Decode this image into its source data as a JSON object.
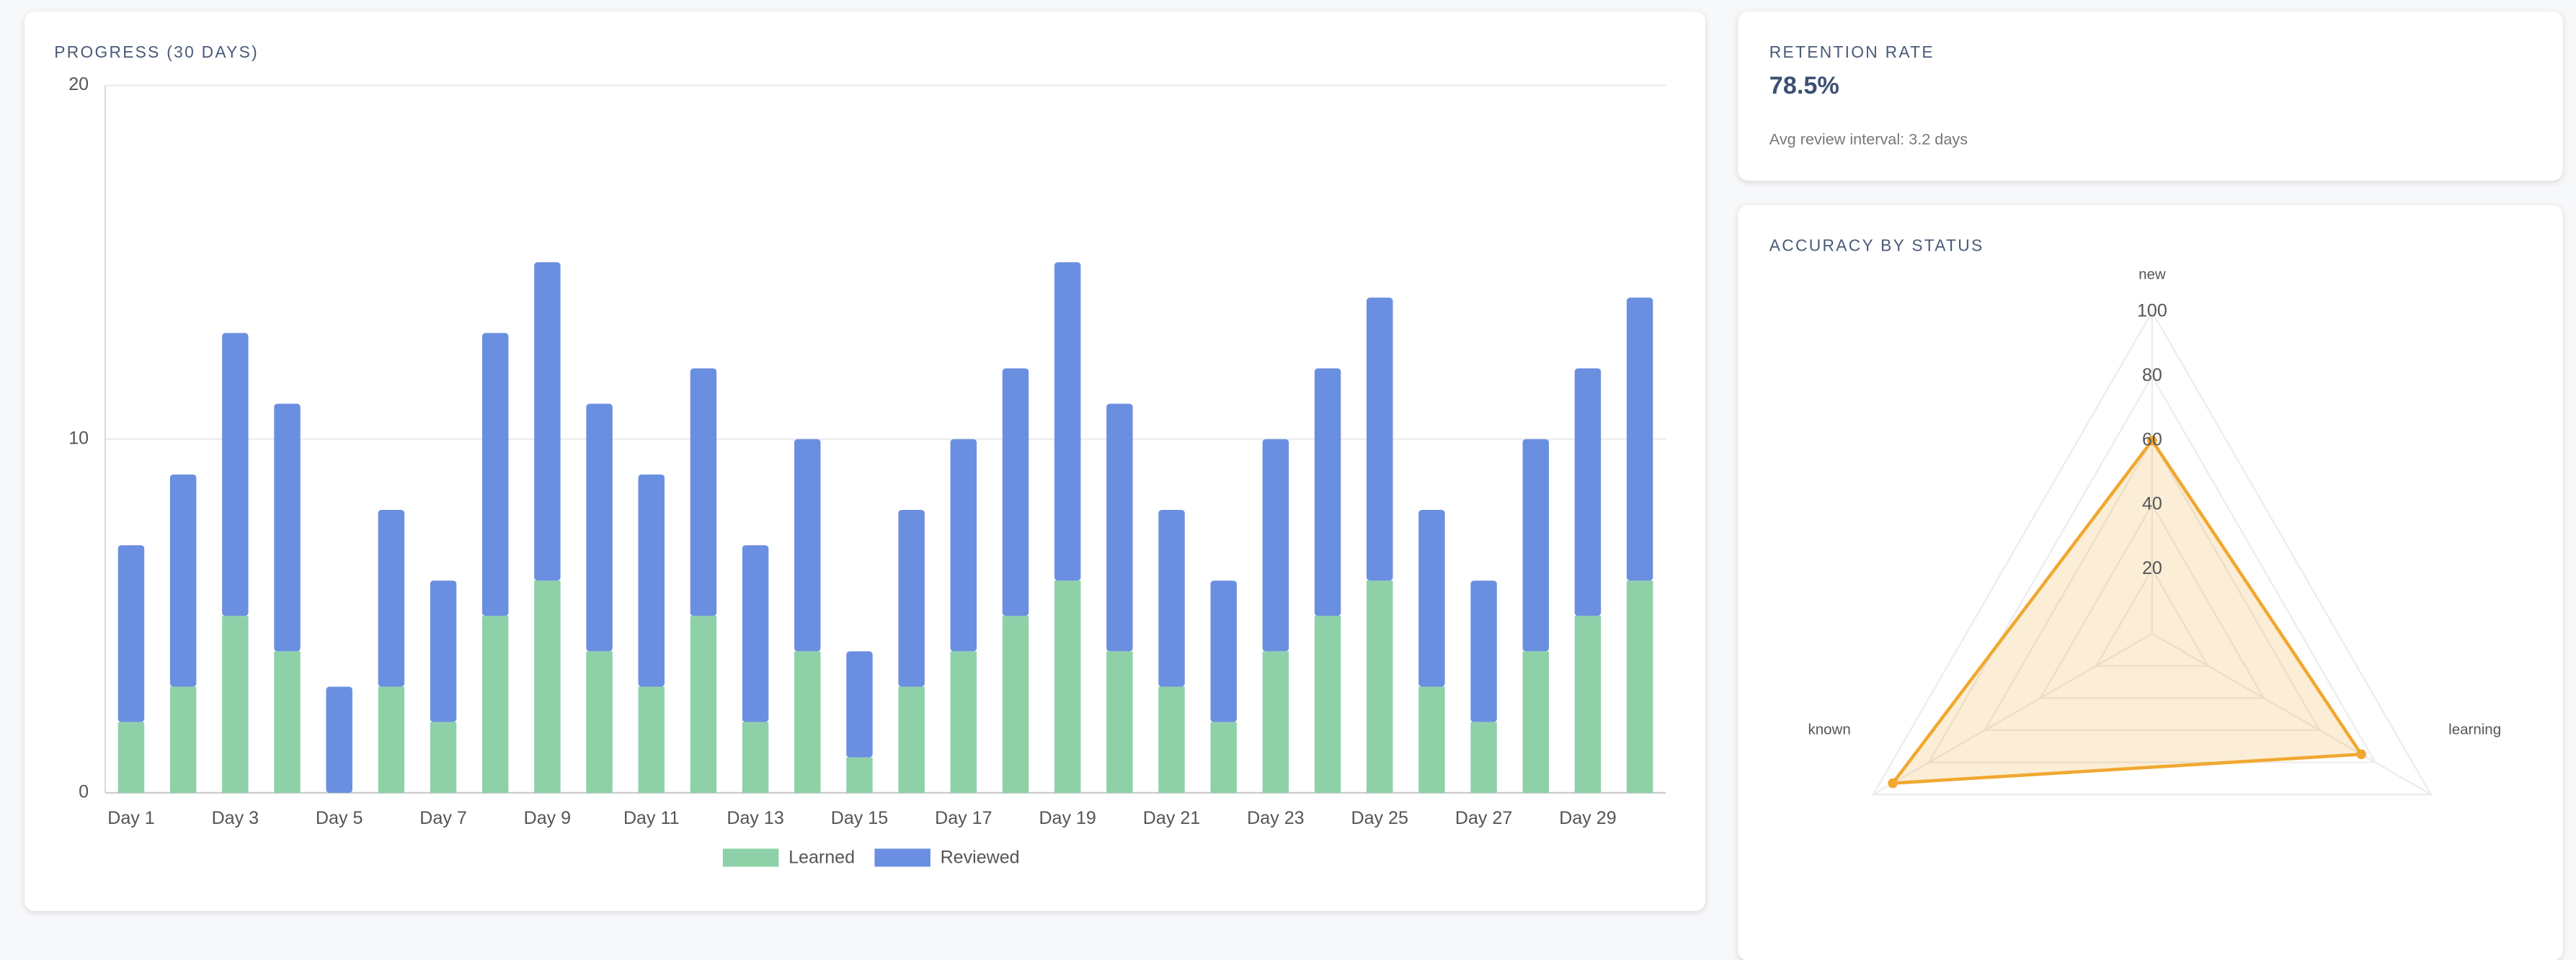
{
  "chart_data": [
    {
      "type": "bar",
      "title": "PROGRESS (30 DAYS)",
      "categories": [
        "Day 1",
        null,
        "Day 3",
        null,
        "Day 5",
        null,
        "Day 7",
        null,
        "Day 9",
        null,
        "Day 11",
        null,
        "Day 13",
        null,
        "Day 15",
        null,
        "Day 17",
        null,
        "Day 19",
        null,
        "Day 21",
        null,
        "Day 23",
        null,
        "Day 25",
        null,
        "Day 27",
        null,
        "Day 29",
        null
      ],
      "series": [
        {
          "name": "Learned",
          "color": "#8ed1a8",
          "values": [
            2,
            3,
            5,
            4,
            0,
            3,
            2,
            5,
            6,
            4,
            3,
            5,
            2,
            4,
            1,
            3,
            4,
            5,
            6,
            4,
            3,
            2,
            4,
            5,
            6,
            3,
            2,
            4,
            5,
            6
          ]
        },
        {
          "name": "Reviewed",
          "color": "#6b8fe0",
          "values": [
            5,
            6,
            8,
            7,
            3,
            5,
            4,
            8,
            9,
            7,
            6,
            7,
            5,
            6,
            3,
            5,
            6,
            7,
            9,
            7,
            5,
            4,
            6,
            7,
            8,
            5,
            4,
            6,
            7,
            8
          ]
        }
      ],
      "stacked": true,
      "ylim": [
        0,
        20
      ],
      "yticks": [
        0,
        10,
        20
      ],
      "grid": true,
      "legend": "bottom"
    },
    {
      "type": "radar",
      "title": "ACCURACY BY STATUS",
      "categories": [
        "new",
        "learning",
        "known"
      ],
      "values": [
        60,
        75,
        93
      ],
      "color": "#f0a830",
      "rlim": [
        0,
        100
      ],
      "rticks": [
        20,
        40,
        60,
        80,
        100
      ]
    }
  ],
  "retention": {
    "title": "RETENTION RATE",
    "value": "78.5%",
    "note": "Avg review interval: 3.2 days"
  }
}
